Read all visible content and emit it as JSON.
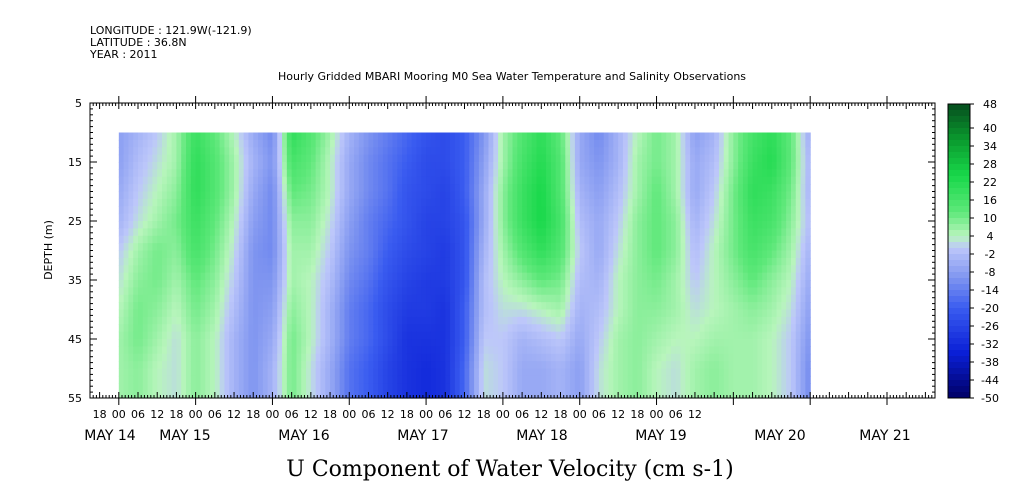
{
  "header": {
    "longitude": "LONGITUDE : 121.9W(-121.9)",
    "latitude": "LATITUDE : 36.8N",
    "year": "YEAR : 2011"
  },
  "chart_data": {
    "type": "heatmap",
    "title": "Hourly Gridded MBARI Mooring M0 Sea Water Temperature and Salinity Observations",
    "xlabel": "U Component of Water Velocity (cm s-1)",
    "ylabel": "DEPTH (m)",
    "ylim": [
      5,
      55
    ],
    "y_inverted": true,
    "y_ticks": [
      "5",
      "15",
      "25",
      "35",
      "45",
      "55"
    ],
    "x_range_hours": [
      -9,
      255
    ],
    "x_hour_ticks": [
      "18",
      "00",
      "06",
      "12",
      "18",
      "00",
      "06",
      "12",
      "18",
      "00",
      "06",
      "12",
      "18",
      "00",
      "06",
      "12",
      "18",
      "00",
      "06",
      "12",
      "18",
      "00",
      "06",
      "12",
      "18",
      "00",
      "06",
      "12",
      "18",
      "00",
      "06",
      "12"
    ],
    "x_day_labels": [
      "MAY 14",
      "MAY 15",
      "MAY 16",
      "MAY 17",
      "MAY 18",
      "MAY 19",
      "MAY 20",
      "MAY 21"
    ],
    "data_depth_range": [
      10,
      55
    ],
    "depths": [
      10,
      15,
      20,
      25,
      30,
      35,
      40,
      45,
      50,
      55
    ],
    "time_start_hour": 0,
    "time_step_hours": 6,
    "values": [
      [
        -8,
        -4,
        0,
        6,
        18,
        12,
        4,
        -6,
        -12,
        20,
        14,
        6,
        -4,
        -10,
        -14,
        -18,
        -22,
        -24,
        -20,
        -10,
        6,
        14,
        20,
        12,
        -6,
        -12,
        -4,
        4,
        10,
        6,
        -8,
        -4,
        8,
        16,
        20,
        12,
        -6
      ],
      [
        -8,
        -2,
        2,
        6,
        20,
        14,
        6,
        -4,
        -10,
        16,
        12,
        4,
        -6,
        -12,
        -16,
        -20,
        -24,
        -24,
        -20,
        -8,
        6,
        16,
        22,
        14,
        -6,
        -10,
        -4,
        6,
        10,
        6,
        -6,
        -2,
        8,
        18,
        22,
        12,
        -4
      ],
      [
        -6,
        0,
        4,
        8,
        20,
        14,
        6,
        -6,
        -12,
        12,
        10,
        4,
        -6,
        -12,
        -16,
        -22,
        -24,
        -26,
        -20,
        -6,
        8,
        18,
        24,
        14,
        -4,
        -8,
        -2,
        6,
        12,
        6,
        -6,
        0,
        10,
        20,
        18,
        10,
        -4
      ],
      [
        -4,
        2,
        6,
        10,
        18,
        12,
        4,
        -8,
        -12,
        8,
        8,
        2,
        -8,
        -14,
        -18,
        -22,
        -26,
        -26,
        -22,
        -6,
        8,
        18,
        24,
        16,
        -2,
        -6,
        0,
        8,
        12,
        8,
        -4,
        2,
        10,
        18,
        16,
        8,
        -2
      ],
      [
        0,
        6,
        10,
        8,
        16,
        10,
        2,
        -10,
        -12,
        6,
        6,
        0,
        -10,
        -14,
        -20,
        -24,
        -26,
        -28,
        -22,
        -4,
        6,
        14,
        20,
        14,
        0,
        -6,
        2,
        8,
        12,
        8,
        -2,
        4,
        10,
        16,
        12,
        6,
        -4
      ],
      [
        2,
        8,
        10,
        6,
        12,
        8,
        0,
        -10,
        -10,
        6,
        4,
        -2,
        -12,
        -16,
        -22,
        -26,
        -28,
        -28,
        -22,
        -2,
        4,
        8,
        12,
        10,
        -2,
        -4,
        4,
        8,
        10,
        6,
        0,
        4,
        8,
        12,
        8,
        4,
        -6
      ],
      [
        4,
        10,
        8,
        4,
        10,
        6,
        -2,
        -10,
        -8,
        8,
        4,
        -4,
        -14,
        -18,
        -24,
        -28,
        -28,
        -30,
        -20,
        -2,
        2,
        2,
        4,
        6,
        -4,
        -2,
        4,
        8,
        8,
        6,
        2,
        4,
        6,
        8,
        6,
        2,
        -8
      ],
      [
        6,
        10,
        6,
        2,
        8,
        4,
        -4,
        -10,
        -6,
        10,
        4,
        -4,
        -14,
        -18,
        -24,
        -30,
        -30,
        -30,
        -20,
        0,
        0,
        -4,
        -2,
        0,
        -6,
        0,
        6,
        8,
        6,
        4,
        4,
        6,
        6,
        6,
        4,
        0,
        -10
      ],
      [
        6,
        8,
        4,
        2,
        8,
        4,
        -4,
        -10,
        -4,
        10,
        2,
        -6,
        -16,
        -20,
        -26,
        -30,
        -32,
        -30,
        -18,
        2,
        0,
        -6,
        -6,
        -4,
        -8,
        2,
        6,
        8,
        4,
        2,
        6,
        8,
        6,
        6,
        4,
        0,
        -12
      ],
      [
        6,
        8,
        4,
        2,
        8,
        4,
        -4,
        -10,
        -4,
        10,
        2,
        -6,
        -16,
        -20,
        -26,
        -30,
        -32,
        -30,
        -18,
        2,
        0,
        -6,
        -6,
        -4,
        -8,
        2,
        6,
        8,
        4,
        2,
        6,
        8,
        6,
        6,
        4,
        0,
        -12
      ]
    ],
    "colorbar_labels": [
      "48",
      "40",
      "34",
      "28",
      "22",
      "16",
      "10",
      "4",
      "-2",
      "-8",
      "-14",
      "-20",
      "-26",
      "-32",
      "-38",
      "-44",
      "-50"
    ],
    "colorbar_levels": [
      48,
      46,
      44,
      42,
      40,
      38,
      36,
      34,
      32,
      30,
      28,
      26,
      24,
      22,
      20,
      18,
      16,
      14,
      12,
      10,
      8,
      6,
      4,
      2,
      0,
      -2,
      -4,
      -6,
      -8,
      -10,
      -12,
      -14,
      -16,
      -18,
      -20,
      -22,
      -24,
      -26,
      -28,
      -30,
      -32,
      -34,
      -36,
      -38,
      -40,
      -42,
      -44,
      -46,
      -48,
      -50
    ],
    "colorbar_range": [
      -50,
      48
    ],
    "color_scale": {
      "-50": "#000066",
      "-35": "#0a1fd6",
      "-20": "#3a5cf0",
      "-10": "#7f95f0",
      "0": "#bdc7fa",
      "4": "#b8f5bc",
      "12": "#5ee87a",
      "24": "#18d84a",
      "36": "#0a9a2e",
      "48": "#064d1e"
    }
  }
}
